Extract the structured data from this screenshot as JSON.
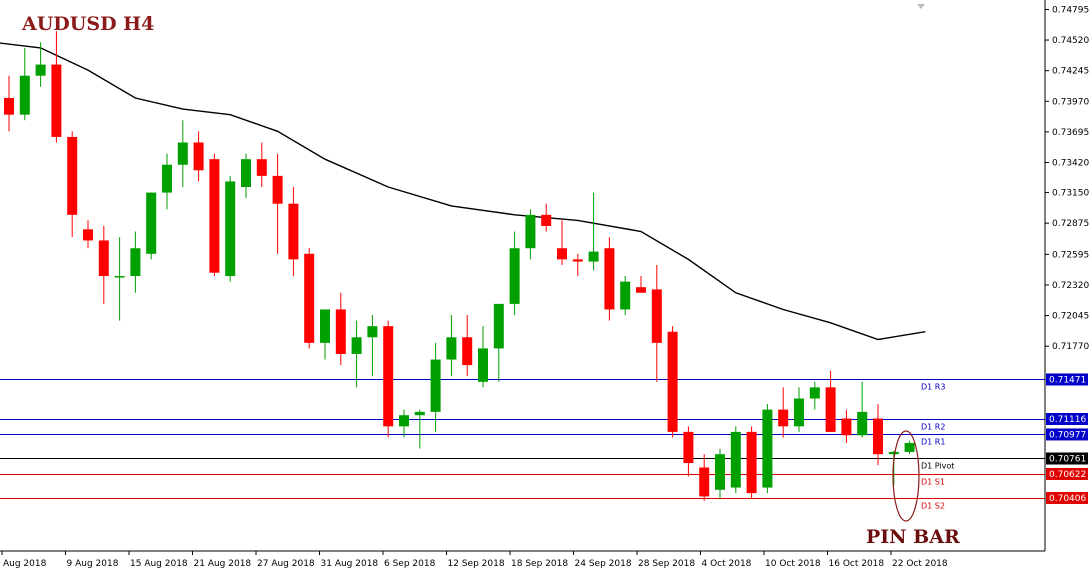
{
  "title": "AUDUSD H4",
  "annotation": "PIN BAR",
  "colors": {
    "bull": "#00a000",
    "bear": "#ff0000",
    "ma": "#000000",
    "resistance": "#0000c8",
    "pivot": "#000000",
    "support": "#e00000",
    "grid": "#000000"
  },
  "chart_data": {
    "type": "candlestick",
    "title": "AUDUSD H4",
    "ylim": [
      0.6993,
      0.7488
    ],
    "y_ticks": [
      "0.74795",
      "0.74520",
      "0.74245",
      "0.73970",
      "0.73695",
      "0.73420",
      "0.73150",
      "0.72875",
      "0.72595",
      "0.72320",
      "0.72045",
      "0.71770"
    ],
    "x_ticks": [
      "Aug 2018",
      "9 Aug 2018",
      "15 Aug 2018",
      "21 Aug 2018",
      "27 Aug 2018",
      "31 Aug 2018",
      "6 Sep 2018",
      "12 Sep 2018",
      "18 Sep 2018",
      "24 Sep 2018",
      "28 Sep 2018",
      "4 Oct 2018",
      "10 Oct 2018",
      "16 Oct 2018",
      "22 Oct 2018"
    ],
    "candles": [
      {
        "o": 0.74,
        "h": 0.742,
        "l": 0.737,
        "c": 0.7385
      },
      {
        "o": 0.7385,
        "h": 0.7445,
        "l": 0.738,
        "c": 0.742
      },
      {
        "o": 0.742,
        "h": 0.745,
        "l": 0.741,
        "c": 0.743
      },
      {
        "o": 0.743,
        "h": 0.746,
        "l": 0.736,
        "c": 0.7365
      },
      {
        "o": 0.7365,
        "h": 0.737,
        "l": 0.7275,
        "c": 0.7295
      },
      {
        "o": 0.7282,
        "h": 0.729,
        "l": 0.7265,
        "c": 0.7272
      },
      {
        "o": 0.7272,
        "h": 0.7285,
        "l": 0.7215,
        "c": 0.724
      },
      {
        "o": 0.724,
        "h": 0.7275,
        "l": 0.72,
        "c": 0.724
      },
      {
        "o": 0.724,
        "h": 0.728,
        "l": 0.7225,
        "c": 0.7265
      },
      {
        "o": 0.726,
        "h": 0.7315,
        "l": 0.7255,
        "c": 0.7315
      },
      {
        "o": 0.7315,
        "h": 0.735,
        "l": 0.73,
        "c": 0.734
      },
      {
        "o": 0.734,
        "h": 0.738,
        "l": 0.732,
        "c": 0.736
      },
      {
        "o": 0.736,
        "h": 0.737,
        "l": 0.7325,
        "c": 0.7335
      },
      {
        "o": 0.7345,
        "h": 0.735,
        "l": 0.724,
        "c": 0.7243
      },
      {
        "o": 0.724,
        "h": 0.733,
        "l": 0.7235,
        "c": 0.7325
      },
      {
        "o": 0.732,
        "h": 0.735,
        "l": 0.731,
        "c": 0.7345
      },
      {
        "o": 0.7345,
        "h": 0.736,
        "l": 0.732,
        "c": 0.733
      },
      {
        "o": 0.733,
        "h": 0.735,
        "l": 0.726,
        "c": 0.7305
      },
      {
        "o": 0.7305,
        "h": 0.732,
        "l": 0.724,
        "c": 0.7255
      },
      {
        "o": 0.726,
        "h": 0.7265,
        "l": 0.7175,
        "c": 0.718
      },
      {
        "o": 0.718,
        "h": 0.721,
        "l": 0.7165,
        "c": 0.721
      },
      {
        "o": 0.721,
        "h": 0.7225,
        "l": 0.716,
        "c": 0.717
      },
      {
        "o": 0.717,
        "h": 0.72,
        "l": 0.714,
        "c": 0.7185
      },
      {
        "o": 0.7185,
        "h": 0.7205,
        "l": 0.715,
        "c": 0.7195
      },
      {
        "o": 0.7195,
        "h": 0.72,
        "l": 0.7095,
        "c": 0.7105
      },
      {
        "o": 0.7105,
        "h": 0.712,
        "l": 0.7095,
        "c": 0.7115
      },
      {
        "o": 0.7115,
        "h": 0.712,
        "l": 0.7085,
        "c": 0.7118
      },
      {
        "o": 0.7118,
        "h": 0.718,
        "l": 0.71,
        "c": 0.7165
      },
      {
        "o": 0.7165,
        "h": 0.7205,
        "l": 0.715,
        "c": 0.7185
      },
      {
        "o": 0.7185,
        "h": 0.7205,
        "l": 0.715,
        "c": 0.716
      },
      {
        "o": 0.7145,
        "h": 0.7195,
        "l": 0.714,
        "c": 0.7175
      },
      {
        "o": 0.7175,
        "h": 0.7215,
        "l": 0.7145,
        "c": 0.7215
      },
      {
        "o": 0.7215,
        "h": 0.728,
        "l": 0.7205,
        "c": 0.7265
      },
      {
        "o": 0.7265,
        "h": 0.73,
        "l": 0.7255,
        "c": 0.7295
      },
      {
        "o": 0.7295,
        "h": 0.7305,
        "l": 0.728,
        "c": 0.7285
      },
      {
        "o": 0.7265,
        "h": 0.729,
        "l": 0.725,
        "c": 0.7255
      },
      {
        "o": 0.7255,
        "h": 0.726,
        "l": 0.724,
        "c": 0.7253
      },
      {
        "o": 0.7253,
        "h": 0.7315,
        "l": 0.7245,
        "c": 0.7262
      },
      {
        "o": 0.7265,
        "h": 0.7275,
        "l": 0.72,
        "c": 0.721
      },
      {
        "o": 0.721,
        "h": 0.724,
        "l": 0.7205,
        "c": 0.7235
      },
      {
        "o": 0.723,
        "h": 0.724,
        "l": 0.7225,
        "c": 0.7225
      },
      {
        "o": 0.7228,
        "h": 0.725,
        "l": 0.7145,
        "c": 0.718
      },
      {
        "o": 0.719,
        "h": 0.7195,
        "l": 0.7095,
        "c": 0.71
      },
      {
        "o": 0.71,
        "h": 0.7105,
        "l": 0.706,
        "c": 0.7072
      },
      {
        "o": 0.7068,
        "h": 0.708,
        "l": 0.7038,
        "c": 0.7042
      },
      {
        "o": 0.7048,
        "h": 0.7085,
        "l": 0.704,
        "c": 0.708
      },
      {
        "o": 0.705,
        "h": 0.7105,
        "l": 0.7045,
        "c": 0.71
      },
      {
        "o": 0.71,
        "h": 0.7105,
        "l": 0.704,
        "c": 0.7045
      },
      {
        "o": 0.705,
        "h": 0.7125,
        "l": 0.7045,
        "c": 0.712
      },
      {
        "o": 0.712,
        "h": 0.714,
        "l": 0.7095,
        "c": 0.7105
      },
      {
        "o": 0.7105,
        "h": 0.714,
        "l": 0.71,
        "c": 0.713
      },
      {
        "o": 0.713,
        "h": 0.7145,
        "l": 0.712,
        "c": 0.714
      },
      {
        "o": 0.714,
        "h": 0.7155,
        "l": 0.71,
        "c": 0.71
      },
      {
        "o": 0.7112,
        "h": 0.712,
        "l": 0.709,
        "c": 0.7097
      },
      {
        "o": 0.7097,
        "h": 0.7145,
        "l": 0.7095,
        "c": 0.7118
      },
      {
        "o": 0.7112,
        "h": 0.7125,
        "l": 0.707,
        "c": 0.708
      },
      {
        "o": 0.708,
        "h": 0.7083,
        "l": 0.7052,
        "c": 0.7082
      },
      {
        "o": 0.7082,
        "h": 0.7092,
        "l": 0.708,
        "c": 0.709
      }
    ],
    "moving_average": [
      {
        "i": -1,
        "v": 0.745
      },
      {
        "i": 2,
        "v": 0.7445
      },
      {
        "i": 5,
        "v": 0.7425
      },
      {
        "i": 8,
        "v": 0.74
      },
      {
        "i": 11,
        "v": 0.739
      },
      {
        "i": 14,
        "v": 0.7385
      },
      {
        "i": 17,
        "v": 0.737
      },
      {
        "i": 20,
        "v": 0.7345
      },
      {
        "i": 24,
        "v": 0.732
      },
      {
        "i": 28,
        "v": 0.7303
      },
      {
        "i": 32,
        "v": 0.7295
      },
      {
        "i": 36,
        "v": 0.729
      },
      {
        "i": 40,
        "v": 0.728
      },
      {
        "i": 43,
        "v": 0.7255
      },
      {
        "i": 46,
        "v": 0.7225
      },
      {
        "i": 49,
        "v": 0.721
      },
      {
        "i": 52,
        "v": 0.7198
      },
      {
        "i": 55,
        "v": 0.7183
      },
      {
        "i": 58,
        "v": 0.719
      }
    ],
    "levels": [
      {
        "name": "D1 R3",
        "value": 0.71471,
        "label": "0.71471",
        "kind": "resistance"
      },
      {
        "name": "D1 R2",
        "value": 0.71116,
        "label": "0.71116",
        "kind": "resistance"
      },
      {
        "name": "D1 R1",
        "value": 0.70977,
        "label": "0.70977",
        "kind": "resistance"
      },
      {
        "name": "D1 Pivot",
        "value": 0.70761,
        "label": "0.70761",
        "kind": "pivot"
      },
      {
        "name": "D1 S1",
        "value": 0.70622,
        "label": "0.70622",
        "kind": "support"
      },
      {
        "name": "D1 S2",
        "value": 0.70406,
        "label": "0.70406",
        "kind": "support"
      }
    ],
    "grid": false,
    "legend": "none"
  }
}
